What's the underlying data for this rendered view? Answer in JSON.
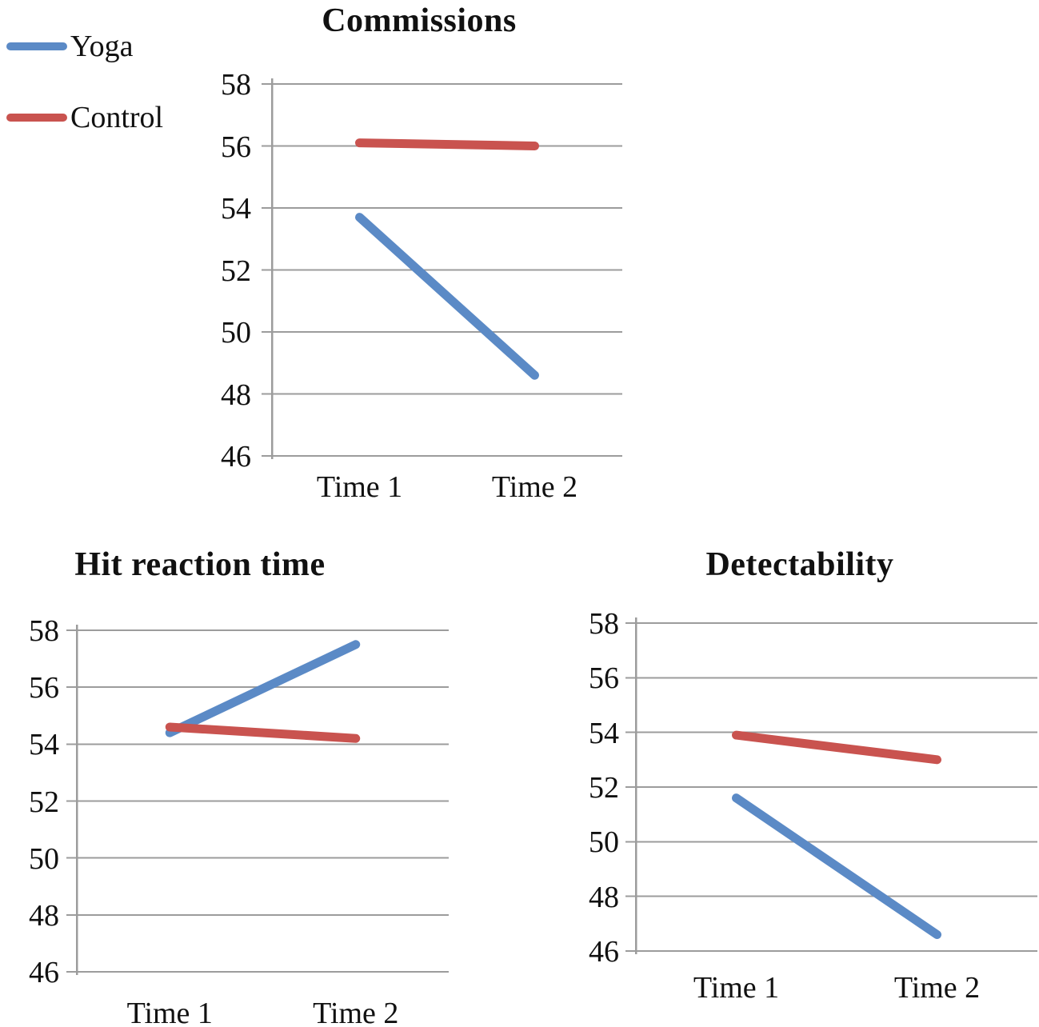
{
  "figure": {
    "background": "#FFFFFF",
    "text_color": "#111111",
    "gridline_color": "#9C9C9C"
  },
  "legend": {
    "position": "top-left",
    "items": [
      {
        "id": "yoga",
        "label": "Yoga",
        "color": "#5B8AC6"
      },
      {
        "id": "control",
        "label": "Control",
        "color": "#C9534F"
      }
    ]
  },
  "chart_data": [
    {
      "type": "line",
      "title": "Commissions",
      "categories": [
        "Time 1",
        "Time 2"
      ],
      "xlabel": "",
      "ylabel": "",
      "grid": true,
      "y_axis": {
        "min": 46,
        "max": 58,
        "tick_step": 2,
        "ticks": [
          58,
          56,
          54,
          52,
          50,
          48,
          46
        ]
      },
      "series": [
        {
          "name": "Yoga",
          "color": "#5B8AC6",
          "values": [
            53.7,
            48.6
          ]
        },
        {
          "name": "Control",
          "color": "#C9534F",
          "values": [
            56.1,
            56.0
          ]
        }
      ]
    },
    {
      "type": "line",
      "title": "Hit reaction time",
      "categories": [
        "Time 1",
        "Time 2"
      ],
      "xlabel": "",
      "ylabel": "",
      "grid": true,
      "y_axis": {
        "min": 46,
        "max": 58,
        "tick_step": 2,
        "ticks": [
          58,
          56,
          54,
          52,
          50,
          48,
          46
        ]
      },
      "series": [
        {
          "name": "Yoga",
          "color": "#5B8AC6",
          "values": [
            54.4,
            57.5
          ]
        },
        {
          "name": "Control",
          "color": "#C9534F",
          "values": [
            54.6,
            54.2
          ]
        }
      ]
    },
    {
      "type": "line",
      "title": "Detectability",
      "categories": [
        "Time 1",
        "Time 2"
      ],
      "xlabel": "",
      "ylabel": "",
      "grid": true,
      "y_axis": {
        "min": 46,
        "max": 58,
        "tick_step": 2,
        "ticks": [
          58,
          56,
          54,
          52,
          50,
          48,
          46
        ]
      },
      "series": [
        {
          "name": "Yoga",
          "color": "#5B8AC6",
          "values": [
            51.6,
            46.6
          ]
        },
        {
          "name": "Control",
          "color": "#C9534F",
          "values": [
            53.9,
            53.0
          ]
        }
      ]
    }
  ]
}
